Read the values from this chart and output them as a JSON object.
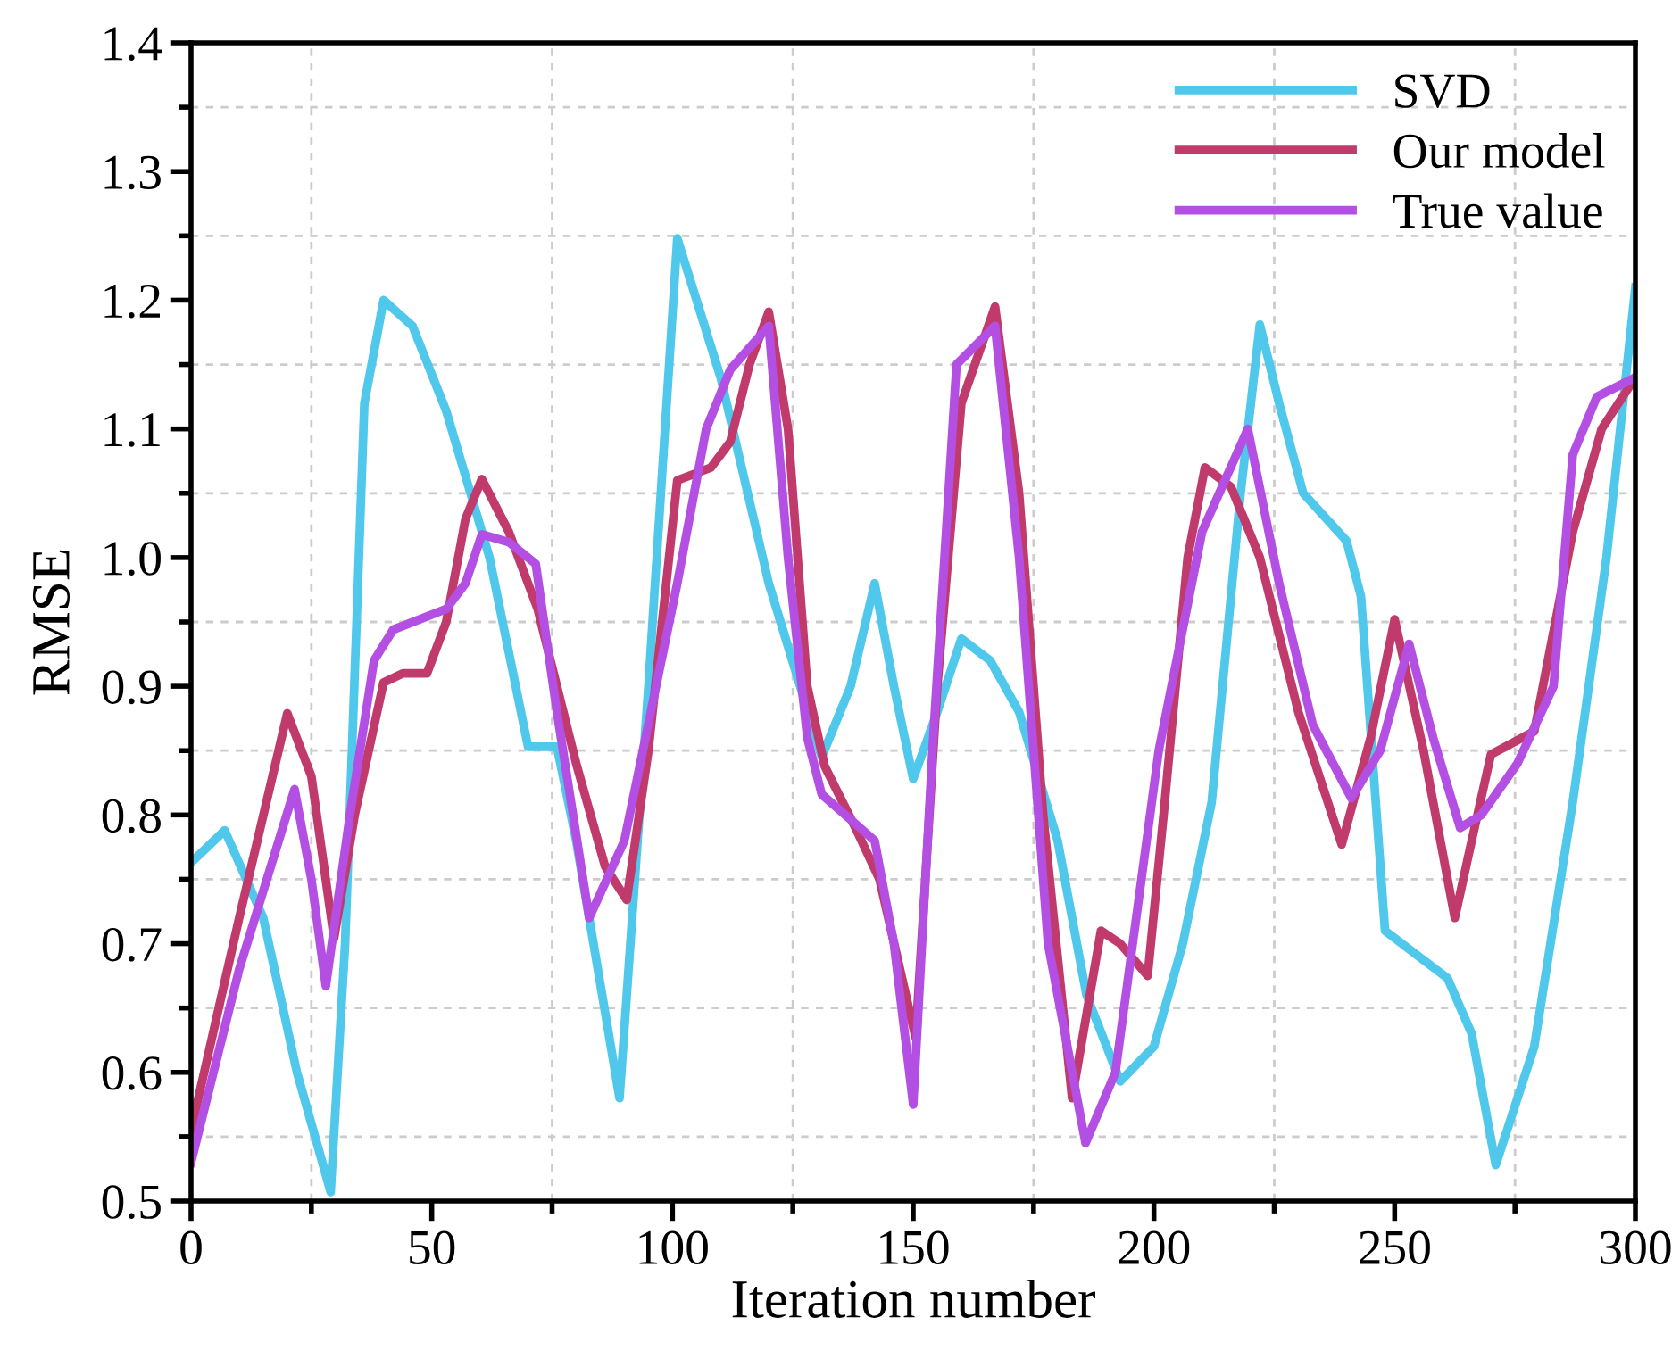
{
  "chart_data": {
    "type": "line",
    "xlabel": "Iteration number",
    "ylabel": "RMSE",
    "xlim": [
      0,
      300
    ],
    "ylim": [
      0.5,
      1.4
    ],
    "xticks": [
      0,
      50,
      100,
      150,
      200,
      250,
      300
    ],
    "yticks": [
      {
        "value": 0.5,
        "label": "0.5"
      },
      {
        "value": 0.6,
        "label": "0.6"
      },
      {
        "value": 0.7,
        "label": "0.7"
      },
      {
        "value": 0.8,
        "label": "0.8"
      },
      {
        "value": 0.9,
        "label": "0.9"
      },
      {
        "value": 1.0,
        "label": "1.0"
      },
      {
        "value": 1.1,
        "label": "1.1"
      },
      {
        "value": 1.2,
        "label": "1.2"
      },
      {
        "value": 1.3,
        "label": "1.3"
      },
      {
        "value": 1.4,
        "label": "1.4"
      }
    ],
    "grid": true,
    "legend": "top right",
    "marker": "none",
    "line_style": "solid",
    "series": [
      {
        "name": "SVD",
        "color": "#4fc8ec",
        "x": [
          0,
          7,
          15,
          22,
          29,
          32,
          36,
          40,
          46,
          53,
          62,
          70,
          76,
          80,
          89,
          95,
          101,
          110,
          120,
          131,
          137,
          142,
          146,
          150,
          155,
          160,
          166,
          172,
          180,
          186,
          193,
          200,
          206,
          212,
          218,
          222,
          226,
          231,
          240,
          243,
          248,
          255,
          261,
          266,
          271,
          279,
          287,
          294,
          300
        ],
        "values": [
          0.763,
          0.788,
          0.72,
          0.6,
          0.507,
          0.7,
          1.12,
          1.2,
          1.18,
          1.114,
          1.0,
          0.853,
          0.853,
          0.78,
          0.58,
          0.9,
          1.248,
          1.14,
          0.98,
          0.845,
          0.9,
          0.98,
          0.9,
          0.828,
          0.88,
          0.937,
          0.92,
          0.88,
          0.78,
          0.66,
          0.593,
          0.62,
          0.7,
          0.81,
          1.05,
          1.181,
          1.12,
          1.05,
          1.013,
          0.97,
          0.71,
          0.69,
          0.673,
          0.63,
          0.528,
          0.62,
          0.81,
          1.0,
          1.21
        ]
      },
      {
        "name": "Our model",
        "color": "#c13a6c",
        "x": [
          0,
          10,
          20,
          25,
          29.7,
          34,
          40,
          44,
          49,
          53,
          57,
          60.4,
          66,
          72,
          80,
          86,
          90.5,
          95,
          101,
          108,
          112,
          116,
          120,
          124,
          128,
          131.6,
          138,
          143,
          150.5,
          155,
          160,
          167,
          172,
          177,
          183,
          189,
          193,
          198.7,
          202,
          207,
          210.6,
          216,
          222,
          230,
          239,
          245,
          250,
          256,
          262.5,
          266,
          270,
          279,
          287,
          293,
          300
        ],
        "values": [
          0.555,
          0.72,
          0.879,
          0.83,
          0.704,
          0.8,
          0.903,
          0.91,
          0.91,
          0.95,
          1.03,
          1.061,
          1.02,
          0.96,
          0.84,
          0.76,
          0.734,
          0.85,
          1.06,
          1.07,
          1.09,
          1.15,
          1.191,
          1.1,
          0.9,
          0.838,
          0.79,
          0.75,
          0.627,
          0.9,
          1.12,
          1.195,
          1.05,
          0.8,
          0.58,
          0.71,
          0.7,
          0.675,
          0.8,
          1.0,
          1.07,
          1.055,
          1.0,
          0.88,
          0.777,
          0.86,
          0.952,
          0.85,
          0.72,
          0.78,
          0.847,
          0.865,
          1.02,
          1.1,
          1.14
        ]
      },
      {
        "name": "True value",
        "color": "#b44fe4",
        "x": [
          0,
          10,
          21.5,
          25,
          28,
          33,
          38,
          42,
          53,
          57,
          60.4,
          66,
          71.6,
          76,
          82.7,
          90,
          101,
          107,
          112,
          120,
          124,
          128,
          131,
          142,
          146,
          150,
          154,
          159,
          167,
          172,
          178,
          185.8,
          192,
          201,
          210,
          219.5,
          226,
          233,
          241,
          247,
          253,
          258,
          263.6,
          268,
          275.5,
          283,
          287,
          292,
          300
        ],
        "values": [
          0.53,
          0.68,
          0.82,
          0.75,
          0.667,
          0.8,
          0.92,
          0.944,
          0.96,
          0.98,
          1.018,
          1.012,
          0.995,
          0.88,
          0.72,
          0.78,
          0.98,
          1.1,
          1.146,
          1.18,
          1.0,
          0.86,
          0.816,
          0.78,
          0.7,
          0.575,
          0.85,
          1.15,
          1.18,
          1.0,
          0.7,
          0.545,
          0.6,
          0.85,
          1.02,
          1.1,
          0.98,
          0.87,
          0.813,
          0.85,
          0.933,
          0.86,
          0.79,
          0.8,
          0.84,
          0.9,
          1.08,
          1.125,
          1.14
        ]
      }
    ]
  }
}
